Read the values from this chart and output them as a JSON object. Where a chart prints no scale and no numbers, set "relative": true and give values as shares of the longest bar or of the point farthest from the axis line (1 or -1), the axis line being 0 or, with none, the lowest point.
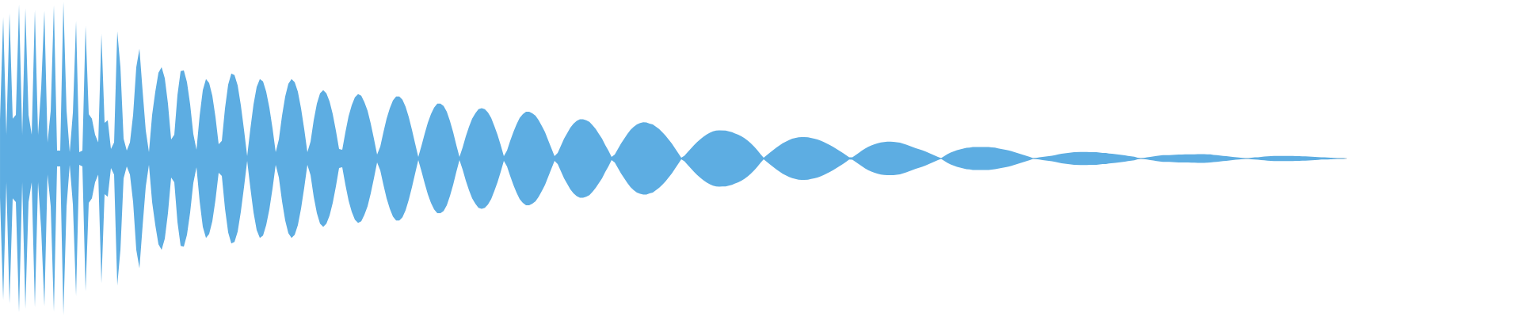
{
  "chart_data": {
    "type": "area",
    "relative": true,
    "categories": [
      null,
      null,
      null,
      null,
      null,
      null,
      null,
      null,
      null,
      null,
      null,
      null,
      null,
      null,
      null,
      null,
      null,
      null,
      null,
      null,
      null,
      null,
      null,
      null,
      null,
      null,
      null,
      null,
      null,
      null,
      null,
      null,
      null,
      null,
      null,
      null,
      null,
      null,
      null,
      null,
      null,
      null,
      null,
      null,
      null,
      null,
      null,
      null,
      null,
      null,
      null,
      null,
      null,
      null,
      null,
      null,
      null,
      null,
      null,
      null,
      null,
      null,
      null,
      null,
      null,
      null,
      null,
      null,
      null,
      null,
      null,
      null,
      null,
      null,
      null,
      null,
      null,
      null,
      null,
      null,
      null,
      null,
      null,
      null,
      null,
      null,
      null,
      null,
      null,
      null,
      null,
      null,
      null,
      null,
      null,
      null,
      null,
      null,
      null,
      null,
      null,
      null,
      null,
      null,
      null,
      null,
      null,
      null,
      null,
      null,
      null,
      null,
      null,
      null,
      null,
      null,
      null,
      null,
      null,
      null,
      null,
      null,
      null,
      null,
      null,
      null,
      null,
      null,
      null,
      null,
      null,
      null,
      null,
      null,
      null,
      null,
      null,
      null,
      null,
      null,
      null,
      null,
      null,
      null,
      null,
      null,
      null,
      null,
      null,
      null,
      null,
      null,
      null,
      null,
      null,
      null,
      null,
      null,
      null,
      null,
      null,
      null,
      null,
      null,
      null,
      null,
      null,
      null,
      null,
      null,
      null,
      null,
      null,
      null,
      null,
      null,
      null,
      null,
      null,
      null,
      null,
      null,
      null,
      null,
      null,
      null,
      null,
      null,
      null,
      null,
      null,
      null,
      null,
      null,
      null,
      null,
      null,
      null,
      null,
      null,
      null,
      null,
      null,
      null,
      null,
      null,
      null,
      null,
      null,
      null,
      null,
      null,
      null,
      null,
      null,
      null,
      null,
      null,
      null,
      null,
      null,
      null,
      null,
      null,
      null,
      null,
      null,
      null,
      null,
      null,
      null,
      null,
      null,
      null,
      null,
      null,
      null,
      null,
      null,
      null,
      null,
      null,
      null,
      null,
      null,
      null,
      null,
      null,
      null,
      null,
      null,
      null,
      null,
      null,
      null,
      null,
      null,
      null,
      null,
      null,
      null,
      null,
      null,
      null,
      null,
      null,
      null,
      null,
      null,
      null,
      null,
      null,
      null,
      null,
      null,
      null,
      null,
      null,
      null,
      null,
      null,
      null,
      null,
      null,
      null,
      null,
      null,
      null,
      null,
      null,
      null,
      null,
      null,
      null,
      null,
      null,
      null,
      null,
      null,
      null,
      null,
      null,
      null,
      null,
      null,
      null,
      null,
      null,
      null,
      null,
      null,
      null,
      null,
      null,
      null,
      null,
      null,
      null,
      null,
      null,
      null,
      null,
      null,
      null,
      null,
      null,
      null,
      null,
      null,
      null,
      null,
      null,
      null,
      null,
      null,
      null,
      null,
      null,
      null,
      null,
      null,
      null,
      null,
      null,
      null,
      null,
      null,
      null,
      null,
      null,
      null,
      null,
      null,
      null,
      null,
      null,
      null,
      null,
      null,
      null,
      null,
      null,
      null,
      null,
      null,
      null,
      null,
      null,
      null,
      null,
      null,
      null,
      null,
      null,
      null,
      null,
      null,
      null,
      null,
      null,
      null,
      null,
      null,
      null,
      null,
      null,
      null,
      null,
      null,
      null,
      null,
      null,
      null,
      null,
      null,
      null,
      null,
      null,
      null,
      null,
      null,
      null,
      null,
      null,
      null,
      null,
      null,
      null,
      null,
      null,
      null,
      null,
      null,
      null,
      null,
      null,
      null,
      null,
      null,
      null,
      null,
      null,
      null,
      null,
      null,
      null
    ],
    "series": [
      {
        "color": "#5dade2",
        "values": [
          0.254,
          0.904,
          0.152,
          0.929,
          0.254,
          0.279,
          0.985,
          0.152,
          0.959,
          0.279,
          0.152,
          0.949,
          0.152,
          0.457,
          0.944,
          0.102,
          0.305,
          0.98,
          0.051,
          0.051,
          1,
          0.305,
          0.041,
          0.294,
          0.878,
          0.041,
          0.051,
          0.848,
          0.284,
          0.254,
          0.152,
          0.102,
          0.797,
          0.228,
          0.244,
          0.061,
          0.102,
          0.812,
          0.584,
          0.127,
          0.051,
          0.102,
          0.279,
          0.584,
          0.701,
          0.431,
          0.178,
          0.041,
          0.279,
          0.426,
          0.548,
          0.584,
          0.513,
          0.35,
          0.122,
          0.152,
          0.406,
          0.558,
          0.563,
          0.487,
          0.345,
          0.157,
          0.056,
          0.274,
          0.437,
          0.508,
          0.482,
          0.401,
          0.264,
          0.091,
          0.112,
          0.32,
          0.472,
          0.543,
          0.533,
          0.467,
          0.34,
          0.183,
          0.015,
          0.188,
          0.345,
          0.457,
          0.508,
          0.492,
          0.426,
          0.325,
          0.193,
          0.041,
          0.122,
          0.274,
          0.396,
          0.477,
          0.508,
          0.487,
          0.426,
          0.32,
          0.188,
          0.041,
          0.107,
          0.244,
          0.35,
          0.416,
          0.437,
          0.416,
          0.365,
          0.284,
          0.178,
          0.061,
          0.056,
          0.168,
          0.269,
          0.34,
          0.391,
          0.411,
          0.401,
          0.36,
          0.305,
          0.223,
          0.127,
          0.025,
          0.076,
          0.168,
          0.254,
          0.32,
          0.371,
          0.396,
          0.396,
          0.376,
          0.33,
          0.264,
          0.183,
          0.096,
          0.01,
          0.081,
          0.157,
          0.228,
          0.284,
          0.325,
          0.35,
          0.35,
          0.335,
          0.299,
          0.239,
          0.168,
          0.086,
          0.01,
          0.071,
          0.142,
          0.203,
          0.254,
          0.289,
          0.315,
          0.322,
          0.315,
          0.294,
          0.259,
          0.208,
          0.152,
          0.086,
          0.015,
          0.051,
          0.112,
          0.168,
          0.218,
          0.259,
          0.284,
          0.299,
          0.299,
          0.289,
          0.274,
          0.244,
          0.208,
          0.168,
          0.117,
          0.066,
          0.015,
          0.036,
          0.081,
          0.127,
          0.162,
          0.198,
          0.223,
          0.241,
          0.251,
          0.251,
          0.244,
          0.234,
          0.213,
          0.188,
          0.157,
          0.127,
          0.086,
          0.051,
          0.01,
          0.025,
          0.061,
          0.096,
          0.127,
          0.157,
          0.183,
          0.203,
          0.218,
          0.226,
          0.231,
          0.23,
          0.223,
          0.218,
          0.203,
          0.188,
          0.168,
          0.147,
          0.122,
          0.096,
          0.066,
          0.036,
          0.005,
          0.018,
          0.041,
          0.063,
          0.085,
          0.105,
          0.123,
          0.139,
          0.153,
          0.164,
          0.173,
          0.178,
          0.18,
          0.179,
          0.178,
          0.173,
          0.168,
          0.16,
          0.152,
          0.142,
          0.129,
          0.114,
          0.096,
          0.076,
          0.053,
          0.028,
          0.005,
          0.021,
          0.038,
          0.054,
          0.07,
          0.084,
          0.097,
          0.108,
          0.118,
          0.126,
          0.131,
          0.136,
          0.137,
          0.137,
          0.135,
          0.131,
          0.127,
          0.121,
          0.114,
          0.105,
          0.095,
          0.085,
          0.074,
          0.061,
          0.048,
          0.035,
          0.021,
          0.007,
          0.008,
          0.021,
          0.036,
          0.05,
          0.063,
          0.075,
          0.083,
          0.091,
          0.097,
          0.102,
          0.105,
          0.107,
          0.107,
          0.106,
          0.104,
          0.101,
          0.095,
          0.089,
          0.081,
          0.073,
          0.066,
          0.06,
          0.053,
          0.045,
          0.037,
          0.028,
          0.019,
          0.01,
          0.002,
          0.015,
          0.028,
          0.038,
          0.046,
          0.053,
          0.058,
          0.063,
          0.068,
          0.07,
          0.073,
          0.074,
          0.074,
          0.074,
          0.074,
          0.073,
          0.071,
          0.069,
          0.065,
          0.061,
          0.057,
          0.053,
          0.048,
          0.042,
          0.036,
          0.029,
          0.023,
          0.017,
          0.01,
          0.003,
          0.004,
          0.007,
          0.01,
          0.013,
          0.015,
          0.018,
          0.022,
          0.026,
          0.03,
          0.033,
          0.036,
          0.038,
          0.04,
          0.041,
          0.042,
          0.042,
          0.042,
          0.041,
          0.041,
          0.04,
          0.038,
          0.036,
          0.035,
          0.032,
          0.03,
          0.028,
          0.025,
          0.023,
          0.02,
          0.017,
          0.014,
          0.011,
          0.005,
          0.002,
          0.004,
          0.007,
          0.01,
          0.013,
          0.016,
          0.019,
          0.021,
          0.022,
          0.022,
          0.023,
          0.024,
          0.025,
          0.025,
          0.026,
          0.026,
          0.027,
          0.027,
          0.028,
          0.028,
          0.028,
          0.027,
          0.026,
          0.023,
          0.021,
          0.019,
          0.017,
          0.015,
          0.013,
          0.01,
          0.008,
          0.006,
          0.004,
          0.002,
          0.003,
          0.005,
          0.007,
          0.008,
          0.01,
          0.012,
          0.014,
          0.015,
          0.016,
          0.016,
          0.017,
          0.017,
          0.017,
          0.017,
          0.017,
          0.015,
          0.015,
          0.014,
          0.014,
          0.013,
          0.011,
          0.01,
          0.009,
          0.007,
          0.007,
          0.006,
          0.005,
          0.004,
          0.003,
          0.003,
          0.002,
          0
        ]
      },
      {
        "color": "#5dade2",
        "values": [
          -0.254,
          -0.904,
          -0.152,
          -0.929,
          -0.254,
          -0.279,
          -0.985,
          -0.152,
          -0.959,
          -0.279,
          -0.152,
          -0.949,
          -0.152,
          -0.457,
          -0.944,
          -0.102,
          -0.305,
          -0.98,
          -0.051,
          -0.051,
          -1,
          -0.305,
          -0.041,
          -0.294,
          -0.878,
          -0.041,
          -0.051,
          -0.848,
          -0.284,
          -0.254,
          -0.152,
          -0.102,
          -0.797,
          -0.228,
          -0.244,
          -0.061,
          -0.102,
          -0.812,
          -0.584,
          -0.127,
          -0.051,
          -0.102,
          -0.279,
          -0.584,
          -0.701,
          -0.431,
          -0.178,
          -0.041,
          -0.279,
          -0.426,
          -0.548,
          -0.584,
          -0.513,
          -0.35,
          -0.122,
          -0.152,
          -0.406,
          -0.558,
          -0.563,
          -0.487,
          -0.345,
          -0.157,
          -0.056,
          -0.274,
          -0.437,
          -0.508,
          -0.482,
          -0.401,
          -0.264,
          -0.091,
          -0.112,
          -0.32,
          -0.472,
          -0.543,
          -0.533,
          -0.467,
          -0.34,
          -0.183,
          -0.015,
          -0.188,
          -0.345,
          -0.457,
          -0.508,
          -0.492,
          -0.426,
          -0.325,
          -0.193,
          -0.041,
          -0.122,
          -0.274,
          -0.396,
          -0.477,
          -0.508,
          -0.487,
          -0.426,
          -0.32,
          -0.188,
          -0.041,
          -0.107,
          -0.244,
          -0.35,
          -0.416,
          -0.437,
          -0.416,
          -0.365,
          -0.284,
          -0.178,
          -0.061,
          -0.056,
          -0.168,
          -0.269,
          -0.34,
          -0.391,
          -0.411,
          -0.401,
          -0.36,
          -0.305,
          -0.223,
          -0.127,
          -0.025,
          -0.076,
          -0.168,
          -0.254,
          -0.32,
          -0.371,
          -0.396,
          -0.396,
          -0.376,
          -0.33,
          -0.264,
          -0.183,
          -0.096,
          -0.01,
          -0.081,
          -0.157,
          -0.228,
          -0.284,
          -0.325,
          -0.35,
          -0.35,
          -0.335,
          -0.299,
          -0.239,
          -0.168,
          -0.086,
          -0.01,
          -0.071,
          -0.142,
          -0.203,
          -0.254,
          -0.289,
          -0.315,
          -0.322,
          -0.315,
          -0.294,
          -0.259,
          -0.208,
          -0.152,
          -0.086,
          -0.015,
          -0.051,
          -0.112,
          -0.168,
          -0.218,
          -0.259,
          -0.284,
          -0.299,
          -0.299,
          -0.289,
          -0.274,
          -0.244,
          -0.208,
          -0.168,
          -0.117,
          -0.066,
          -0.015,
          -0.036,
          -0.081,
          -0.127,
          -0.162,
          -0.198,
          -0.223,
          -0.241,
          -0.251,
          -0.251,
          -0.244,
          -0.234,
          -0.213,
          -0.188,
          -0.157,
          -0.127,
          -0.086,
          -0.051,
          -0.01,
          -0.025,
          -0.061,
          -0.096,
          -0.127,
          -0.157,
          -0.183,
          -0.203,
          -0.218,
          -0.226,
          -0.231,
          -0.23,
          -0.223,
          -0.218,
          -0.203,
          -0.188,
          -0.168,
          -0.147,
          -0.122,
          -0.096,
          -0.066,
          -0.036,
          -0.005,
          -0.018,
          -0.041,
          -0.063,
          -0.085,
          -0.105,
          -0.123,
          -0.139,
          -0.153,
          -0.164,
          -0.173,
          -0.178,
          -0.18,
          -0.179,
          -0.178,
          -0.173,
          -0.168,
          -0.16,
          -0.152,
          -0.142,
          -0.129,
          -0.114,
          -0.096,
          -0.076,
          -0.053,
          -0.028,
          -0.005,
          -0.021,
          -0.038,
          -0.054,
          -0.07,
          -0.084,
          -0.097,
          -0.108,
          -0.118,
          -0.126,
          -0.131,
          -0.136,
          -0.137,
          -0.137,
          -0.135,
          -0.131,
          -0.127,
          -0.121,
          -0.114,
          -0.105,
          -0.095,
          -0.085,
          -0.074,
          -0.061,
          -0.048,
          -0.035,
          -0.021,
          -0.007,
          -0.008,
          -0.021,
          -0.036,
          -0.05,
          -0.063,
          -0.075,
          -0.083,
          -0.091,
          -0.097,
          -0.102,
          -0.105,
          -0.107,
          -0.107,
          -0.106,
          -0.104,
          -0.101,
          -0.095,
          -0.089,
          -0.081,
          -0.073,
          -0.066,
          -0.06,
          -0.053,
          -0.045,
          -0.037,
          -0.028,
          -0.019,
          -0.01,
          -0.002,
          -0.015,
          -0.028,
          -0.038,
          -0.046,
          -0.053,
          -0.058,
          -0.063,
          -0.068,
          -0.07,
          -0.073,
          -0.074,
          -0.074,
          -0.074,
          -0.074,
          -0.073,
          -0.071,
          -0.069,
          -0.065,
          -0.061,
          -0.057,
          -0.053,
          -0.048,
          -0.042,
          -0.036,
          -0.029,
          -0.023,
          -0.017,
          -0.01,
          -0.003,
          -0.004,
          -0.007,
          -0.01,
          -0.013,
          -0.015,
          -0.018,
          -0.022,
          -0.026,
          -0.03,
          -0.033,
          -0.036,
          -0.038,
          -0.04,
          -0.041,
          -0.042,
          -0.042,
          -0.042,
          -0.041,
          -0.041,
          -0.04,
          -0.038,
          -0.036,
          -0.035,
          -0.032,
          -0.03,
          -0.028,
          -0.025,
          -0.023,
          -0.02,
          -0.017,
          -0.014,
          -0.011,
          -0.005,
          -0.002,
          -0.004,
          -0.007,
          -0.01,
          -0.013,
          -0.016,
          -0.019,
          -0.021,
          -0.022,
          -0.022,
          -0.023,
          -0.024,
          -0.025,
          -0.025,
          -0.026,
          -0.026,
          -0.027,
          -0.027,
          -0.028,
          -0.028,
          -0.028,
          -0.027,
          -0.026,
          -0.023,
          -0.021,
          -0.019,
          -0.017,
          -0.015,
          -0.013,
          -0.01,
          -0.008,
          -0.006,
          -0.004,
          -0.002,
          -0.003,
          -0.005,
          -0.007,
          -0.008,
          -0.01,
          -0.012,
          -0.014,
          -0.015,
          -0.016,
          -0.016,
          -0.017,
          -0.017,
          -0.017,
          -0.017,
          -0.017,
          -0.015,
          -0.015,
          -0.014,
          -0.014,
          -0.013,
          -0.011,
          -0.01,
          -0.009,
          -0.007,
          -0.007,
          -0.006,
          -0.005,
          -0.004,
          -0.003,
          -0.003,
          -0.002,
          0
        ]
      }
    ]
  }
}
